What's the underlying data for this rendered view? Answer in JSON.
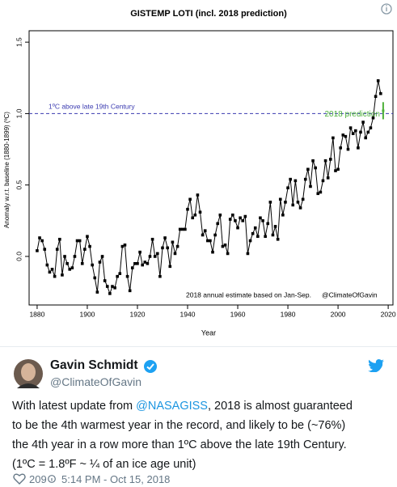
{
  "chart_data": {
    "type": "line",
    "title": "GISTEMP LOTI (incl. 2018 prediction)",
    "x_label": "Year",
    "y_label": "Anomaly w.r.t. baseline (1880-1899) (ºC)",
    "x": [
      1880,
      1881,
      1882,
      1883,
      1884,
      1885,
      1886,
      1887,
      1888,
      1889,
      1890,
      1891,
      1892,
      1893,
      1894,
      1895,
      1896,
      1897,
      1898,
      1899,
      1900,
      1901,
      1902,
      1903,
      1904,
      1905,
      1906,
      1907,
      1908,
      1909,
      1910,
      1911,
      1912,
      1913,
      1914,
      1915,
      1916,
      1917,
      1918,
      1919,
      1920,
      1921,
      1922,
      1923,
      1924,
      1925,
      1926,
      1927,
      1928,
      1929,
      1930,
      1931,
      1932,
      1933,
      1934,
      1935,
      1936,
      1937,
      1938,
      1939,
      1940,
      1941,
      1942,
      1943,
      1944,
      1945,
      1946,
      1947,
      1948,
      1949,
      1950,
      1951,
      1952,
      1953,
      1954,
      1955,
      1956,
      1957,
      1958,
      1959,
      1960,
      1961,
      1962,
      1963,
      1964,
      1965,
      1966,
      1967,
      1968,
      1969,
      1970,
      1971,
      1972,
      1973,
      1974,
      1975,
      1976,
      1977,
      1978,
      1979,
      1980,
      1981,
      1982,
      1983,
      1984,
      1985,
      1986,
      1987,
      1988,
      1989,
      1990,
      1991,
      1992,
      1993,
      1994,
      1995,
      1996,
      1997,
      1998,
      1999,
      2000,
      2001,
      2002,
      2003,
      2004,
      2005,
      2006,
      2007,
      2008,
      2009,
      2010,
      2011,
      2012,
      2013,
      2014,
      2015,
      2016,
      2017
    ],
    "series": [
      {
        "color": "#000000",
        "values": [
          0.04,
          0.13,
          0.11,
          0.05,
          -0.06,
          -0.11,
          -0.09,
          -0.14,
          0.05,
          0.12,
          -0.13,
          0.0,
          -0.05,
          -0.09,
          -0.08,
          0.0,
          0.11,
          0.11,
          -0.05,
          0.05,
          0.14,
          0.07,
          -0.06,
          -0.15,
          -0.25,
          -0.04,
          0.0,
          -0.17,
          -0.21,
          -0.26,
          -0.21,
          -0.22,
          -0.14,
          -0.12,
          0.07,
          0.08,
          -0.14,
          -0.24,
          -0.08,
          -0.05,
          -0.05,
          0.03,
          -0.06,
          -0.04,
          -0.05,
          0.0,
          0.12,
          0.0,
          0.02,
          -0.14,
          0.06,
          0.13,
          0.06,
          -0.07,
          0.1,
          0.02,
          0.07,
          0.19,
          0.19,
          0.19,
          0.33,
          0.4,
          0.27,
          0.29,
          0.43,
          0.31,
          0.15,
          0.18,
          0.11,
          0.11,
          0.03,
          0.15,
          0.23,
          0.29,
          0.07,
          0.08,
          0.02,
          0.26,
          0.29,
          0.25,
          0.2,
          0.27,
          0.25,
          0.28,
          0.02,
          0.11,
          0.16,
          0.2,
          0.14,
          0.27,
          0.25,
          0.14,
          0.23,
          0.38,
          0.15,
          0.21,
          0.12,
          0.4,
          0.29,
          0.38,
          0.48,
          0.54,
          0.36,
          0.53,
          0.38,
          0.34,
          0.4,
          0.54,
          0.61,
          0.49,
          0.67,
          0.62,
          0.44,
          0.45,
          0.53,
          0.67,
          0.55,
          0.68,
          0.83,
          0.6,
          0.61,
          0.76,
          0.85,
          0.84,
          0.75,
          0.9,
          0.86,
          0.88,
          0.76,
          0.87,
          0.94,
          0.83,
          0.87,
          0.9,
          0.97,
          1.12,
          1.23,
          1.14
        ]
      }
    ],
    "prediction": {
      "label": "2018 prediction",
      "x": 2018,
      "value": 1.02,
      "error": 0.06,
      "color": "#4db03a"
    },
    "reference_line": {
      "value": 1.0,
      "label": "1ºC above late 19th Century",
      "color": "#3a3ab0"
    },
    "note": "2018 annual estimate based on Jan-Sep.",
    "credit": "@ClimateOfGavin",
    "xlim": [
      1876.8,
      2021.9
    ],
    "ylim": [
      -0.34,
      1.58
    ],
    "xticks": [
      1880,
      1900,
      1920,
      1940,
      1960,
      1980,
      2000,
      2020
    ],
    "yticks": [
      {
        "value": 0,
        "label": "0.0"
      },
      0.5,
      {
        "value": 1,
        "label": "1.0"
      },
      1.5
    ]
  },
  "tweet": {
    "name": "Gavin Schmidt",
    "handle": "@ClimateOfGavin",
    "text": [
      [
        "With latest update from ",
        "@NASAGISS",
        ", 2018 is almost guaranteed"
      ],
      "to be the 4th warmest year in the record, and likely to be (~76%)",
      "the 4th year in a row more than 1ºC above the late 19th Century.",
      "(1ºC = 1.8ºF ~ ¼ of an ice age unit)"
    ],
    "likes": "209",
    "time": "5:14 PM - Oct 15, 2018"
  }
}
